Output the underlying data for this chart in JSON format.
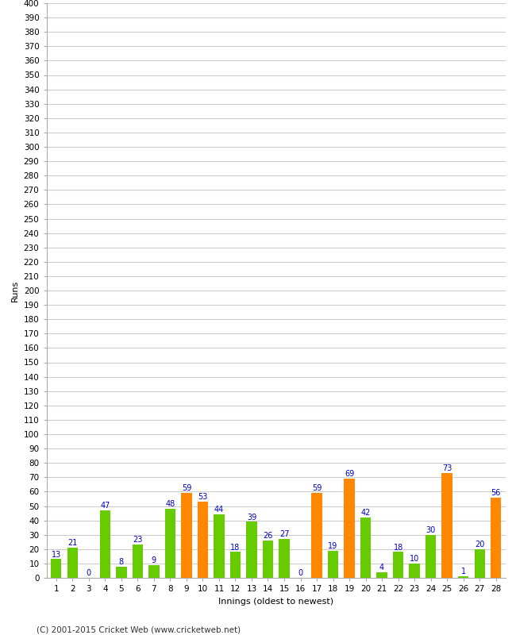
{
  "xlabel": "Innings (oldest to newest)",
  "ylabel": "Runs",
  "ylim": [
    0,
    400
  ],
  "yticks": [
    0,
    10,
    20,
    30,
    40,
    50,
    60,
    70,
    80,
    90,
    100,
    110,
    120,
    130,
    140,
    150,
    160,
    170,
    180,
    190,
    200,
    210,
    220,
    230,
    240,
    250,
    260,
    270,
    280,
    290,
    300,
    310,
    320,
    330,
    340,
    350,
    360,
    370,
    380,
    390,
    400
  ],
  "innings": [
    1,
    2,
    3,
    4,
    5,
    6,
    7,
    8,
    9,
    10,
    11,
    12,
    13,
    14,
    15,
    16,
    17,
    18,
    19,
    20,
    21,
    22,
    23,
    24,
    25,
    26,
    27,
    28
  ],
  "values": [
    13,
    21,
    0,
    47,
    8,
    23,
    9,
    48,
    59,
    53,
    44,
    18,
    39,
    26,
    27,
    0,
    59,
    19,
    69,
    42,
    4,
    18,
    10,
    30,
    73,
    1,
    20,
    56
  ],
  "colors": [
    "#66cc00",
    "#66cc00",
    "#66cc00",
    "#66cc00",
    "#66cc00",
    "#66cc00",
    "#66cc00",
    "#66cc00",
    "#ff8800",
    "#ff8800",
    "#66cc00",
    "#66cc00",
    "#66cc00",
    "#66cc00",
    "#66cc00",
    "#66cc00",
    "#ff8800",
    "#66cc00",
    "#ff8800",
    "#66cc00",
    "#66cc00",
    "#66cc00",
    "#66cc00",
    "#66cc00",
    "#ff8800",
    "#66cc00",
    "#66cc00",
    "#ff8800"
  ],
  "label_color": "#0000cc",
  "background_color": "#ffffff",
  "grid_color": "#cccccc",
  "footer": "(C) 2001-2015 Cricket Web (www.cricketweb.net)",
  "bar_width": 0.65,
  "tick_fontsize": 7.5,
  "label_fontsize": 7,
  "axis_label_fontsize": 8
}
